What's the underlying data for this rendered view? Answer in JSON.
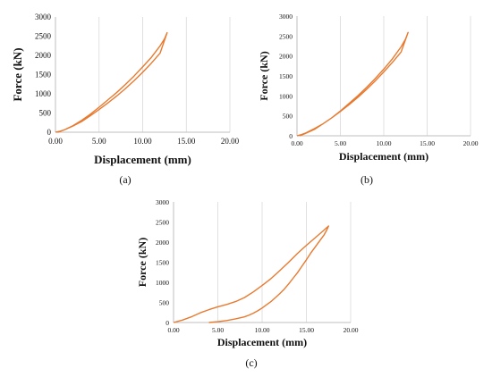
{
  "colors": {
    "curve": "#E87A30",
    "grid": "#d9d9d9",
    "axis": "#bfbfbf"
  },
  "chart_data": [
    {
      "type": "line",
      "panel_label": "(a)",
      "xlabel": "Displacement (mm)",
      "ylabel": "Force (kN)",
      "xlim": [
        0,
        20
      ],
      "ylim": [
        0,
        3000
      ],
      "x_ticks": [
        "0.00",
        "5.00",
        "10.00",
        "15.00",
        "20.00"
      ],
      "y_ticks": [
        "0",
        "500",
        "1000",
        "1500",
        "2000",
        "2500",
        "3000"
      ],
      "grid": "vertical",
      "series": [
        {
          "x": [
            0,
            0.5,
            1,
            2,
            3,
            4,
            5,
            6,
            7,
            8,
            9,
            10,
            11,
            12,
            12.8,
            12.5,
            12.0,
            11.0,
            10.0,
            9.0,
            8.0,
            7.0,
            6.0,
            5.0,
            4.0,
            3.0,
            2.0,
            1.0,
            0.3
          ],
          "y": [
            0,
            25,
            60,
            160,
            280,
            430,
            590,
            760,
            940,
            1130,
            1340,
            1560,
            1800,
            2060,
            2590,
            2430,
            2250,
            1950,
            1700,
            1460,
            1240,
            1030,
            840,
            650,
            470,
            310,
            170,
            60,
            0
          ]
        }
      ]
    },
    {
      "type": "line",
      "panel_label": "(b)",
      "xlabel": "Displacement (mm)",
      "ylabel": "Force (kN)",
      "xlim": [
        0,
        20
      ],
      "ylim": [
        0,
        3000
      ],
      "x_ticks": [
        "0.00",
        "5.00",
        "10.00",
        "15.00",
        "20.00"
      ],
      "y_ticks": [
        "0",
        "500",
        "1000",
        "1500",
        "2000",
        "2500",
        "3000"
      ],
      "grid": "vertical",
      "series": [
        {
          "x": [
            0,
            0.5,
            1,
            2,
            3,
            4,
            5,
            6,
            7,
            8,
            9,
            10,
            11,
            12,
            12.8,
            12.5,
            12.0,
            11.0,
            10.0,
            9.0,
            8.0,
            7.0,
            6.0,
            5.0,
            4.0,
            3.0,
            2.0,
            1.0,
            0.3
          ],
          "y": [
            0,
            30,
            70,
            180,
            300,
            450,
            610,
            780,
            960,
            1160,
            1370,
            1600,
            1840,
            2100,
            2590,
            2420,
            2230,
            1930,
            1670,
            1430,
            1210,
            1000,
            810,
            620,
            450,
            300,
            160,
            60,
            0
          ]
        }
      ]
    },
    {
      "type": "line",
      "panel_label": "(c)",
      "xlabel": "Displacement (mm)",
      "ylabel": "Force (kN)",
      "xlim": [
        0,
        20
      ],
      "ylim": [
        0,
        3000
      ],
      "x_ticks": [
        "0.00",
        "5.00",
        "10.00",
        "15.00",
        "20.00"
      ],
      "y_ticks": [
        "0",
        "500",
        "1000",
        "1500",
        "2000",
        "2500",
        "3000"
      ],
      "grid": "vertical",
      "series": [
        {
          "x": [
            0,
            1,
            2,
            3,
            4,
            5,
            6,
            7,
            8,
            9,
            10,
            11,
            12,
            13,
            14,
            15,
            16,
            17,
            17.5,
            17.3,
            17.0,
            16.5,
            16.0,
            15.5,
            15.0,
            14.5,
            14.0,
            13.5,
            13.0,
            12.5,
            12.0,
            11.5,
            11.0,
            10.5,
            10.0,
            9.5,
            9.0,
            8.5,
            8.0,
            7.0,
            6.0,
            5.0,
            4.0
          ],
          "y": [
            0,
            60,
            140,
            240,
            320,
            390,
            450,
            520,
            620,
            760,
            920,
            1090,
            1290,
            1500,
            1720,
            1920,
            2110,
            2300,
            2400,
            2300,
            2180,
            2030,
            1880,
            1730,
            1560,
            1400,
            1240,
            1100,
            960,
            830,
            720,
            620,
            520,
            440,
            360,
            290,
            230,
            180,
            140,
            90,
            50,
            20,
            0
          ]
        }
      ]
    }
  ]
}
